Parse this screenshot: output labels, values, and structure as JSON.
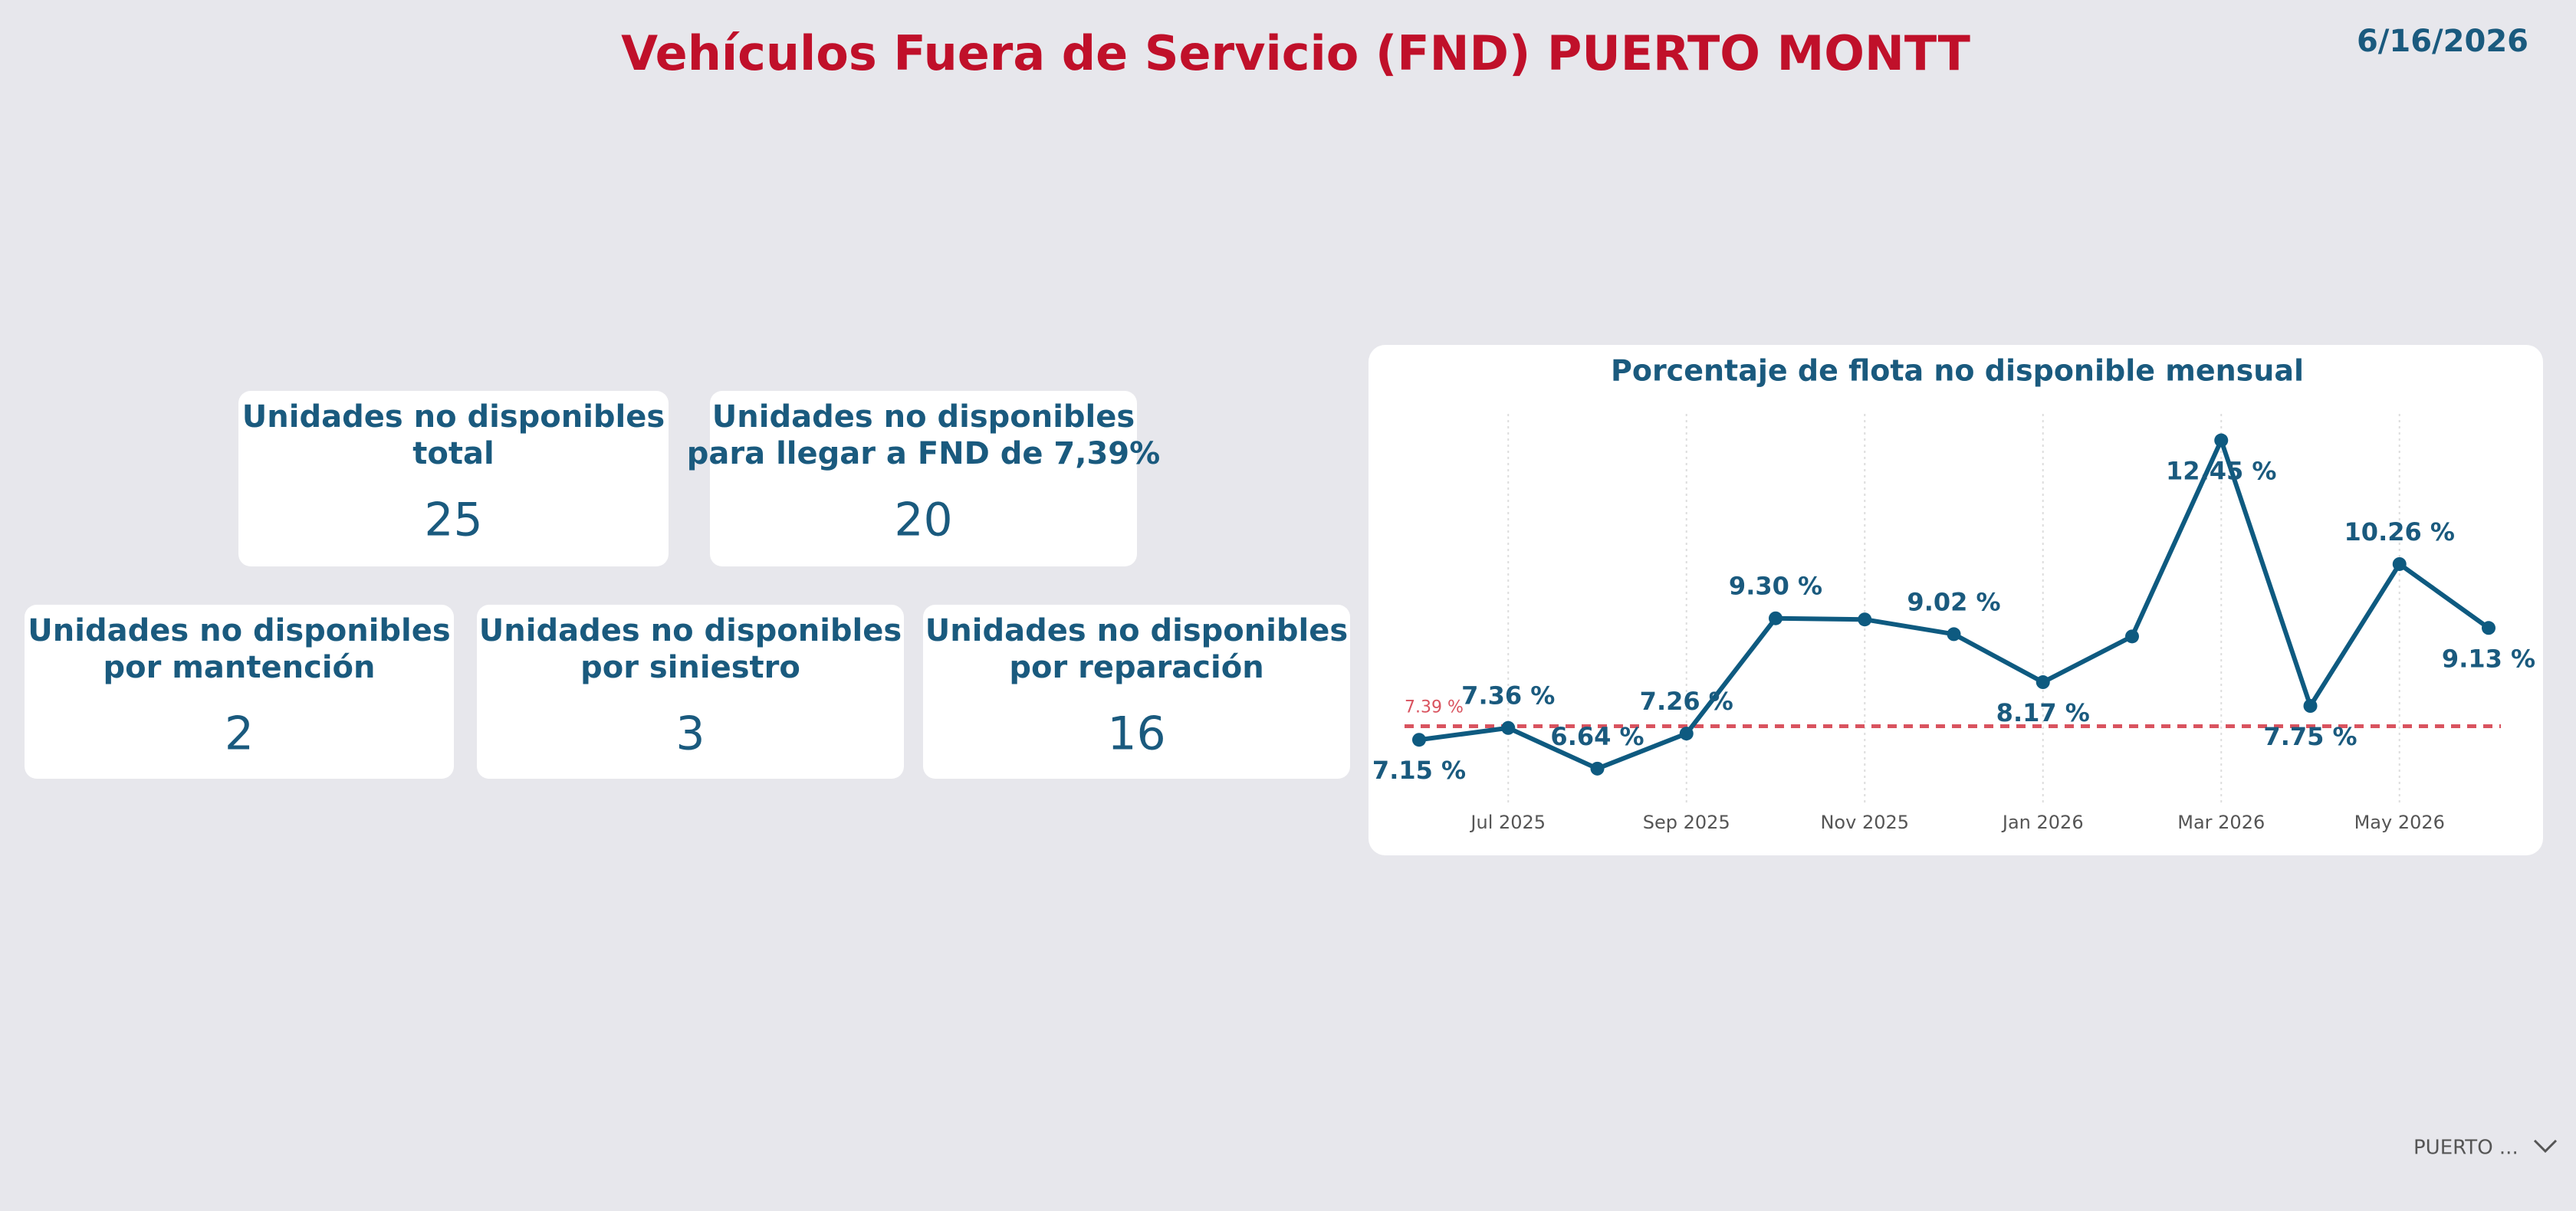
{
  "header": {
    "title": "Vehículos Fuera de Servicio (FND) PUERTO MONTT",
    "date": "6/16/2026"
  },
  "cards": [
    {
      "title": [
        "Unidades no disponibles",
        "total"
      ],
      "value": 25
    },
    {
      "title": [
        "Unidades no disponibles",
        "para llegar a FND de 7,39%"
      ],
      "value": 20
    },
    {
      "title": [
        "Unidades no disponibles",
        "por mantención"
      ],
      "value": 2
    },
    {
      "title": [
        "Unidades no disponibles",
        "por siniestro"
      ],
      "value": 3
    },
    {
      "title": [
        "Unidades no disponibles",
        "por reparación"
      ],
      "value": 16
    }
  ],
  "chart_data": {
    "type": "line",
    "title": "Porcentaje de flota no disponible mensual",
    "categories": [
      null,
      "Jul 2025",
      null,
      "Sep 2025",
      null,
      "Nov 2025",
      null,
      "Jan 2026",
      null,
      "Mar 2026",
      null,
      "May 2026",
      null
    ],
    "values": [
      7.15,
      7.36,
      6.64,
      7.26,
      9.3,
      9.28,
      9.02,
      8.17,
      8.98,
      12.45,
      7.75,
      10.26,
      9.13
    ],
    "value_labels": [
      "7.15 %",
      "7.36 %",
      "6.64 %",
      "7.26 %",
      "9.30 %",
      null,
      "9.02 %",
      "8.17 %",
      null,
      "12.45 %",
      "7.75 %",
      "10.26 %",
      "9.13 %"
    ],
    "color": "#0e5a80",
    "ylim": [
      6,
      13
    ],
    "reference_line": {
      "value": 7.39,
      "label": "7.39 %",
      "color": "#d9535f"
    },
    "grid": true
  },
  "filter": {
    "label": "PUERTO ..."
  }
}
